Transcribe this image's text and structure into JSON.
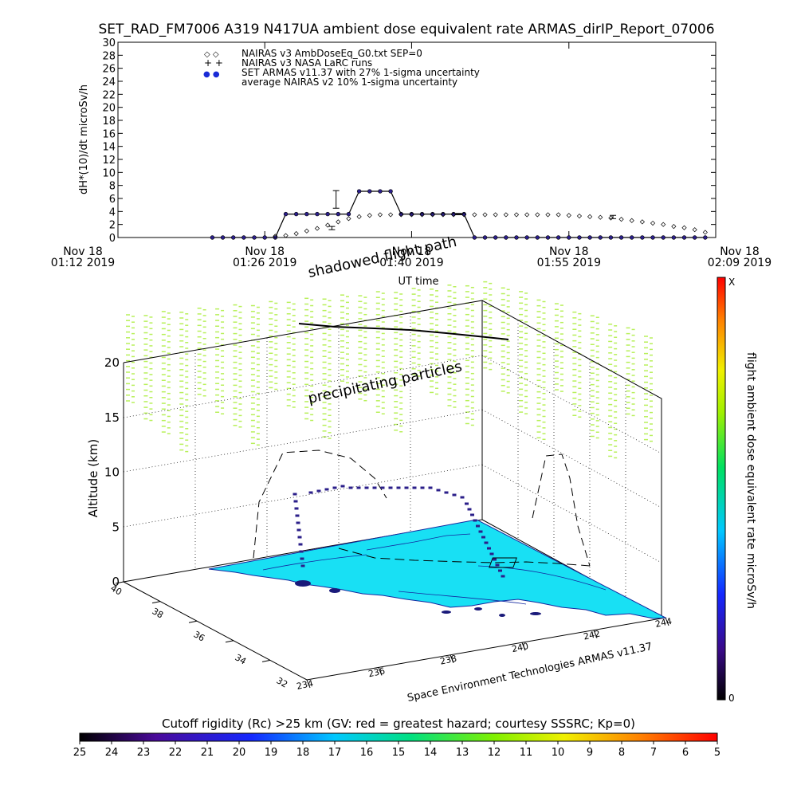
{
  "chart_data": [
    {
      "type": "line",
      "title": "SET_RAD_FM7006  A319 N417UA ambient dose equivalent rate ARMAS_dirIP_Report_07006",
      "xlabel": "UT time",
      "ylabel": "dH*(10)/dt microSv/h",
      "ylim": [
        0,
        30
      ],
      "yticks": [
        0,
        2,
        4,
        6,
        8,
        10,
        12,
        14,
        16,
        18,
        20,
        22,
        24,
        26,
        28,
        30
      ],
      "xlim_minutes": [
        0,
        57
      ],
      "xticks": [
        {
          "minute": 0,
          "line1": "Nov 18",
          "line2": "01:12 2019"
        },
        {
          "minute": 14,
          "line1": "Nov 18",
          "line2": "01:26 2019"
        },
        {
          "minute": 28,
          "line1": "Nov 18",
          "line2": "01:40 2019"
        },
        {
          "minute": 43,
          "line1": "Nov 18",
          "line2": "01:55 2019"
        },
        {
          "minute": 57,
          "line1": "Nov 18",
          "line2": "02:09 2019"
        }
      ],
      "legend": [
        {
          "symbol": "◇ ◇",
          "label": "NAIRAS v3 AmbDoseEq_G0.txt SEP=0"
        },
        {
          "symbol": "+ +",
          "label": "NAIRAS v3 NASA LaRC runs"
        },
        {
          "symbol": "● ●",
          "label": "SET ARMAS v11.37 with 27% 1-sigma uncertainty",
          "color": "#1a2bd6"
        },
        {
          "symbol": "",
          "label": "average NAIRAS v2 10% 1-sigma uncertainty"
        }
      ],
      "legend_position": "top-left",
      "series": [
        {
          "name": "SET ARMAS v11.37 with 27% 1-sigma uncertainty",
          "color": "#2b1f8a",
          "x": [
            9,
            10,
            11,
            12,
            13,
            14,
            15,
            16,
            17,
            18,
            19,
            20,
            21,
            22,
            23,
            24,
            25,
            26,
            27,
            28,
            29,
            30,
            31,
            32,
            33,
            34,
            35,
            36,
            37,
            38,
            39,
            40,
            41,
            42,
            43,
            44,
            45,
            46,
            47,
            48,
            49,
            50,
            51,
            52,
            53,
            54,
            55,
            56
          ],
          "y": [
            0,
            0,
            0,
            0,
            0,
            0,
            0,
            3.6,
            3.6,
            3.6,
            3.6,
            3.6,
            3.6,
            3.6,
            7.1,
            7.1,
            7.1,
            7.1,
            3.6,
            3.6,
            3.6,
            3.6,
            3.6,
            3.6,
            3.6,
            0,
            0,
            0,
            0,
            0,
            0,
            0,
            0,
            0,
            0,
            0,
            0,
            0,
            0,
            0,
            0,
            0,
            0,
            0,
            0,
            0,
            0,
            0
          ]
        },
        {
          "name": "NAIRAS v3 AmbDoseEq_G0.txt SEP=0",
          "x": [
            15,
            16,
            17,
            18,
            19,
            20,
            21,
            22,
            23,
            24,
            25,
            26,
            27,
            28,
            29,
            30,
            31,
            32,
            33,
            34,
            35,
            36,
            37,
            38,
            39,
            40,
            41,
            42,
            43,
            44,
            45,
            46,
            47,
            48,
            49,
            50,
            51,
            52,
            53,
            54,
            55,
            56
          ],
          "y": [
            0.2,
            0.3,
            0.6,
            1.0,
            1.4,
            1.9,
            2.4,
            2.9,
            3.2,
            3.4,
            3.5,
            3.5,
            3.5,
            3.5,
            3.5,
            3.5,
            3.5,
            3.5,
            3.5,
            3.5,
            3.5,
            3.5,
            3.5,
            3.5,
            3.5,
            3.5,
            3.5,
            3.5,
            3.4,
            3.3,
            3.2,
            3.1,
            3.0,
            2.8,
            2.6,
            2.4,
            2.2,
            2.0,
            1.7,
            1.5,
            1.2,
            0.8
          ]
        }
      ],
      "uncertainty_bars": [
        {
          "x": 20.8,
          "ylo": 4.5,
          "yhi": 7.2
        },
        {
          "x": 32.5,
          "ylo": 3.5,
          "yhi": 3.7
        },
        {
          "x": 47.2,
          "ylo": 2.9,
          "yhi": 3.4
        },
        {
          "x": 20.4,
          "ylo": 1.2,
          "yhi": 1.7
        }
      ]
    },
    {
      "type": "scatter",
      "projection": "3d",
      "zlabel": "Altitude (km)",
      "zticks": [
        0,
        5,
        10,
        15,
        20
      ],
      "latitude_ticks": [
        "40",
        "38",
        "36",
        "34",
        "32"
      ],
      "longitude_ticks": [
        "234",
        "236",
        "238",
        "240",
        "242",
        "244"
      ],
      "annotations": [
        "shadowed flight path",
        "precipitating particles",
        "Space Environment Technologies ARMAS v11.37"
      ],
      "colorbar_right": {
        "label": "flight ambient dose equivalent rate microSv/h",
        "max_label": "X",
        "min_label": "0"
      },
      "colorbar_bottom": {
        "label": "Cutoff rigidity (Rc) >25 km (GV: red = greatest hazard; courtesy SSSRC; Kp=0)",
        "ticks": [
          "25",
          "24",
          "23",
          "22",
          "21",
          "20",
          "19",
          "18",
          "17",
          "16",
          "15",
          "14",
          "13",
          "12",
          "11",
          "10",
          "9",
          "8",
          "7",
          "6",
          "5"
        ]
      }
    }
  ],
  "colors": {
    "rigidity_surface": "#18e0f4",
    "particles": "#b8f05a",
    "flight_points": "#2b1f8a",
    "armas_marker": "#1a2bd6"
  }
}
